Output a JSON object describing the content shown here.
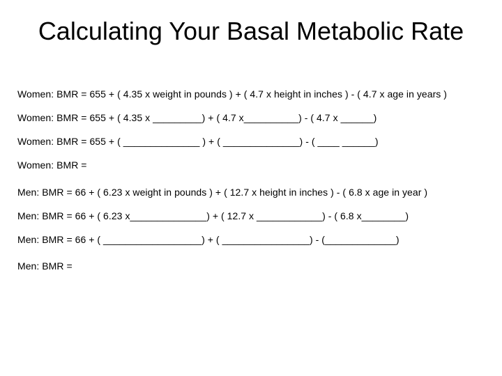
{
  "slide": {
    "title": "Calculating Your Basal Metabolic Rate"
  },
  "women": {
    "formula": "Women: BMR = 655 + ( 4.35 x weight in pounds ) + ( 4.7 x height in inches ) - ( 4.7 x age in years )",
    "step1": "Women: BMR = 655 + ( 4.35 x _________) + ( 4.7 x__________) - ( 4.7 x ______)",
    "step2": "Women: BMR = 655 + ( ______________ ) + ( ______________) - ( ____ ______)",
    "result": "Women: BMR ="
  },
  "men": {
    "formula": "Men: BMR = 66 + ( 6.23 x weight in pounds ) + ( 12.7 x height in inches ) - ( 6.8 x age in year )",
    "step1": "Men: BMR = 66 + ( 6.23 x______________) + ( 12.7 x ____________) - ( 6.8 x________)",
    "step2": "Men: BMR = 66 + ( __________________) + ( ________________) - (_____________)",
    "result": "Men: BMR ="
  }
}
